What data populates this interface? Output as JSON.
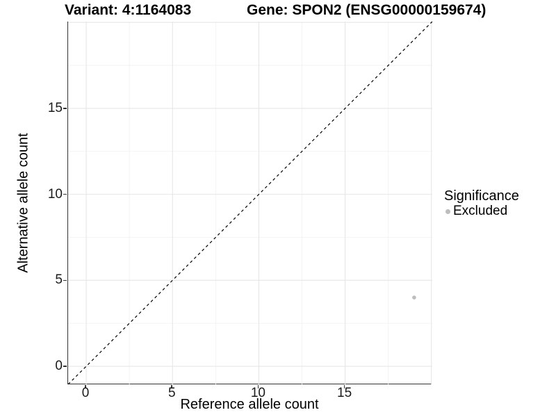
{
  "titles": {
    "variant": "Variant: 4:1164083",
    "gene": "Gene: SPON2 (ENSG00000159674)"
  },
  "axes": {
    "x": {
      "label": "Reference allele count"
    },
    "y": {
      "label": "Alternative allele count"
    }
  },
  "legend": {
    "title": "Significance",
    "items": [
      {
        "label": "Excluded",
        "color": "#bdbdbd"
      }
    ]
  },
  "colors": {
    "background": "#ffffff",
    "grid_major": "#e6e6e6",
    "grid_minor": "#f2f2f2",
    "axis_line": "#333333",
    "tick_text": "#1a1a1a",
    "point": "#bdbdbd",
    "dashed_line": "#000000"
  },
  "chart_data": {
    "type": "scatter",
    "title": "Variant: 4:1164083   Gene: SPON2 (ENSG00000159674)",
    "xlabel": "Reference allele count",
    "ylabel": "Alternative allele count",
    "xlim": [
      -1.05,
      20.05
    ],
    "ylim": [
      -1.05,
      20.05
    ],
    "x_major_ticks": [
      0,
      5,
      10,
      15
    ],
    "y_major_ticks": [
      0,
      5,
      10,
      15
    ],
    "x_major_gridlines": [
      0,
      5,
      10,
      15,
      20
    ],
    "y_major_gridlines": [
      0,
      5,
      10,
      15,
      20
    ],
    "x_minor_gridlines": [
      2.5,
      7.5,
      12.5,
      17.5
    ],
    "y_minor_gridlines": [
      2.5,
      7.5,
      12.5,
      17.5
    ],
    "grid": true,
    "legend_position": "right",
    "series": [
      {
        "name": "Excluded",
        "color": "#bdbdbd",
        "point_radius": 2.8,
        "points": [
          [
            19,
            4
          ]
        ]
      }
    ],
    "reference_line": {
      "type": "identity y=x",
      "style": "dashed",
      "color": "#000000"
    }
  }
}
